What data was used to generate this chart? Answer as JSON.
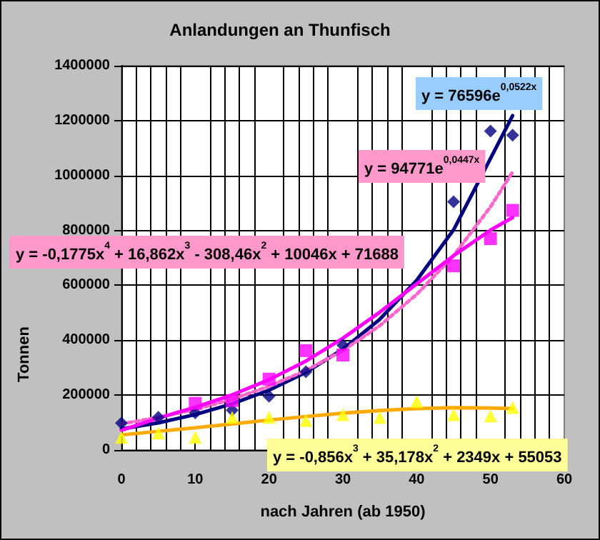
{
  "chart_data": {
    "type": "scatter",
    "title": "Anlandungen an Thunfisch",
    "xlabel": "nach Jahren (ab 1950)",
    "ylabel": "Tonnen",
    "xlim": [
      0,
      60
    ],
    "xticks": [
      0,
      10,
      20,
      30,
      40,
      50,
      60
    ],
    "ylim": [
      0,
      1400000
    ],
    "yticks": [
      0,
      200000,
      400000,
      600000,
      800000,
      1000000,
      1200000,
      1400000
    ],
    "grid": true,
    "annotations": [
      "y = 76596e$^{0,0522x}$",
      "y = 94771e$^{0,0447x}$",
      "y = -0,1775x$^{4}$ + 16,862x$^{3}$ - 308,46x$^{2}$ + 10046x + 71688",
      "y = -0,856x$^{3}$ + 35,178x$^{2}$ + 2349x + 55053"
    ],
    "series": [
      {
        "type": "line",
        "color": "#000080",
        "marker": "none",
        "line_style": "solid",
        "x": [
          0,
          5,
          10,
          15,
          20,
          25,
          30,
          35,
          40,
          45,
          53
        ],
        "values": [
          77000,
          99000,
          129000,
          168000,
          218000,
          283000,
          367000,
          476000,
          618000,
          802000,
          1218000
        ]
      },
      {
        "type": "line",
        "color": "#ff66cc",
        "marker": "none",
        "line_style": "dotted",
        "x": [
          0,
          5,
          10,
          15,
          20,
          25,
          30,
          35,
          40,
          45,
          50,
          53
        ],
        "values": [
          95000,
          119000,
          148000,
          185000,
          232000,
          290000,
          362000,
          453000,
          567000,
          708000,
          886000,
          1013000
        ]
      },
      {
        "type": "line",
        "color": "#ff00ff",
        "marker": "none",
        "line_style": "solid",
        "x": [
          0,
          5,
          10,
          15,
          20,
          25,
          30,
          35,
          40,
          45,
          50,
          53
        ],
        "values": [
          72000,
          116000,
          156000,
          201000,
          256000,
          324000,
          407000,
          502000,
          605000,
          708000,
          801000,
          847000
        ]
      },
      {
        "type": "line",
        "color": "#ffaa00",
        "marker": "none",
        "line_style": "solid",
        "x": [
          0,
          5,
          10,
          15,
          20,
          25,
          30,
          35,
          40,
          45,
          50,
          53
        ],
        "values": [
          55000,
          68000,
          81000,
          95000,
          109000,
          122000,
          134000,
          144000,
          151000,
          154000,
          153000,
          151000
        ]
      },
      {
        "type": "scatter",
        "color": "#000080",
        "marker": "diamond",
        "x": [
          0,
          5,
          10,
          15,
          20,
          25,
          30,
          45,
          50,
          53
        ],
        "values": [
          98000,
          119000,
          135000,
          145000,
          196000,
          285000,
          382000,
          904000,
          1162000,
          1147000
        ]
      },
      {
        "type": "scatter",
        "color": "#ff00ff",
        "marker": "square",
        "x": [
          10,
          15,
          20,
          25,
          30,
          45,
          50,
          53
        ],
        "values": [
          170000,
          180000,
          258000,
          362000,
          346000,
          671000,
          770000,
          873000
        ]
      },
      {
        "type": "scatter",
        "color": "#ffff00",
        "marker": "triangle",
        "x": [
          0,
          5,
          10,
          15,
          20,
          25,
          30,
          35,
          40,
          45,
          50,
          53
        ],
        "values": [
          46000,
          62000,
          46000,
          119000,
          119000,
          108000,
          129000,
          119000,
          176000,
          129000,
          124000,
          155000
        ]
      }
    ]
  }
}
